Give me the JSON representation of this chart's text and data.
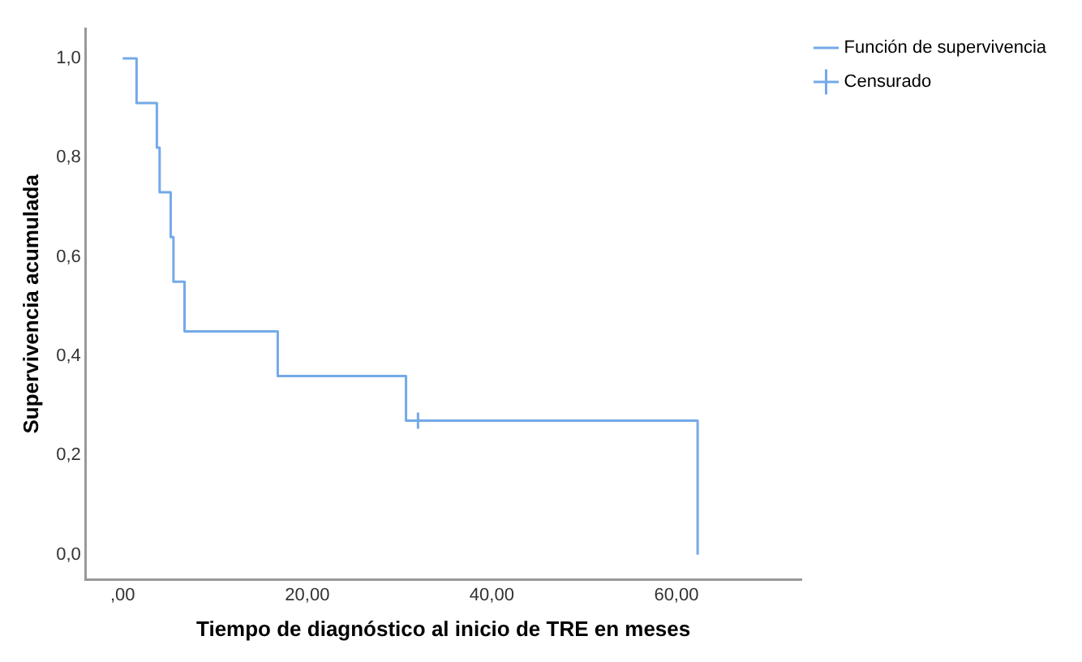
{
  "chart_data": {
    "type": "step",
    "xlabel": "Tiempo de diagnóstico al inicio de TRE en meses",
    "ylabel": "Supervivencia acumulada",
    "series": [
      {
        "name": "Función de supervivencia",
        "color": "#74a9e8",
        "x": [
          0,
          1.5,
          3.7,
          4,
          5.2,
          5.5,
          6.7,
          16.8,
          30.7,
          62.3
        ],
        "values": [
          1,
          0.91,
          0.82,
          0.73,
          0.64,
          0.55,
          0.45,
          0.36,
          0.27,
          0
        ]
      },
      {
        "name": "Censurado",
        "type": "scatter",
        "color": "#74a9e8",
        "marker": "cross",
        "x": [
          32
        ],
        "values": [
          0.27
        ]
      }
    ],
    "xlim": [
      -4,
      73.5
    ],
    "ylim": [
      -0.05,
      1.06
    ],
    "xticks": [
      {
        "value": 0,
        "label": ",00"
      },
      {
        "value": 20,
        "label": "20,00"
      },
      {
        "value": 40,
        "label": "40,00"
      },
      {
        "value": 60,
        "label": "60,00"
      }
    ],
    "yticks": [
      {
        "value": 0,
        "label": "0,0"
      },
      {
        "value": 0.2,
        "label": "0,2"
      },
      {
        "value": 0.4,
        "label": "0,4"
      },
      {
        "value": 0.6,
        "label": "0,6"
      },
      {
        "value": 0.8,
        "label": "0,8"
      },
      {
        "value": 1,
        "label": "1,0"
      }
    ],
    "grid": false,
    "legend": "top right"
  }
}
